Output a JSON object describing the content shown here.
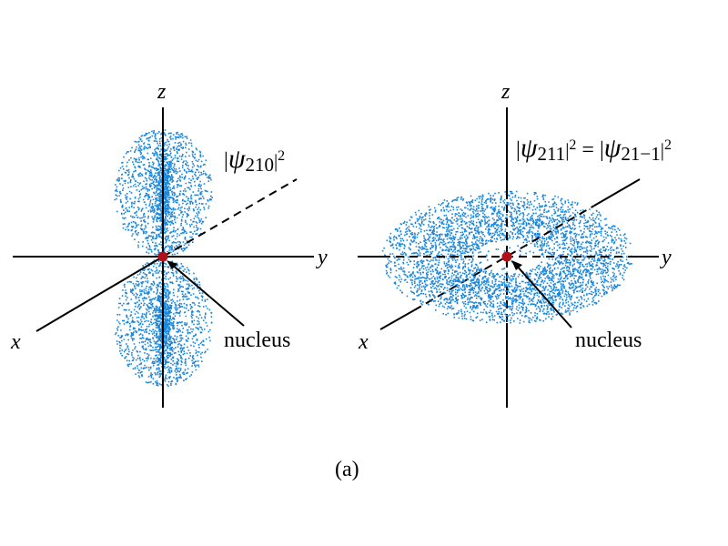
{
  "colors": {
    "cloud": "#1a86d9",
    "nucleus": "#b01018",
    "ink": "#000000",
    "background": "#ffffff"
  },
  "left_panel": {
    "axis_z": "z",
    "axis_y": "y",
    "axis_x": "x",
    "wavefunction": {
      "symbol": "ψ",
      "index": "210",
      "power": "2"
    },
    "nucleus_label": "nucleus"
  },
  "right_panel": {
    "axis_z": "z",
    "axis_y": "y",
    "axis_x": "x",
    "wavefunction_left": {
      "symbol": "ψ",
      "index": "211",
      "power": "2"
    },
    "equals": "=",
    "wavefunction_right": {
      "symbol": "ψ",
      "index": "21−1",
      "power": "2"
    },
    "nucleus_label": "nucleus"
  },
  "caption": "(a)"
}
